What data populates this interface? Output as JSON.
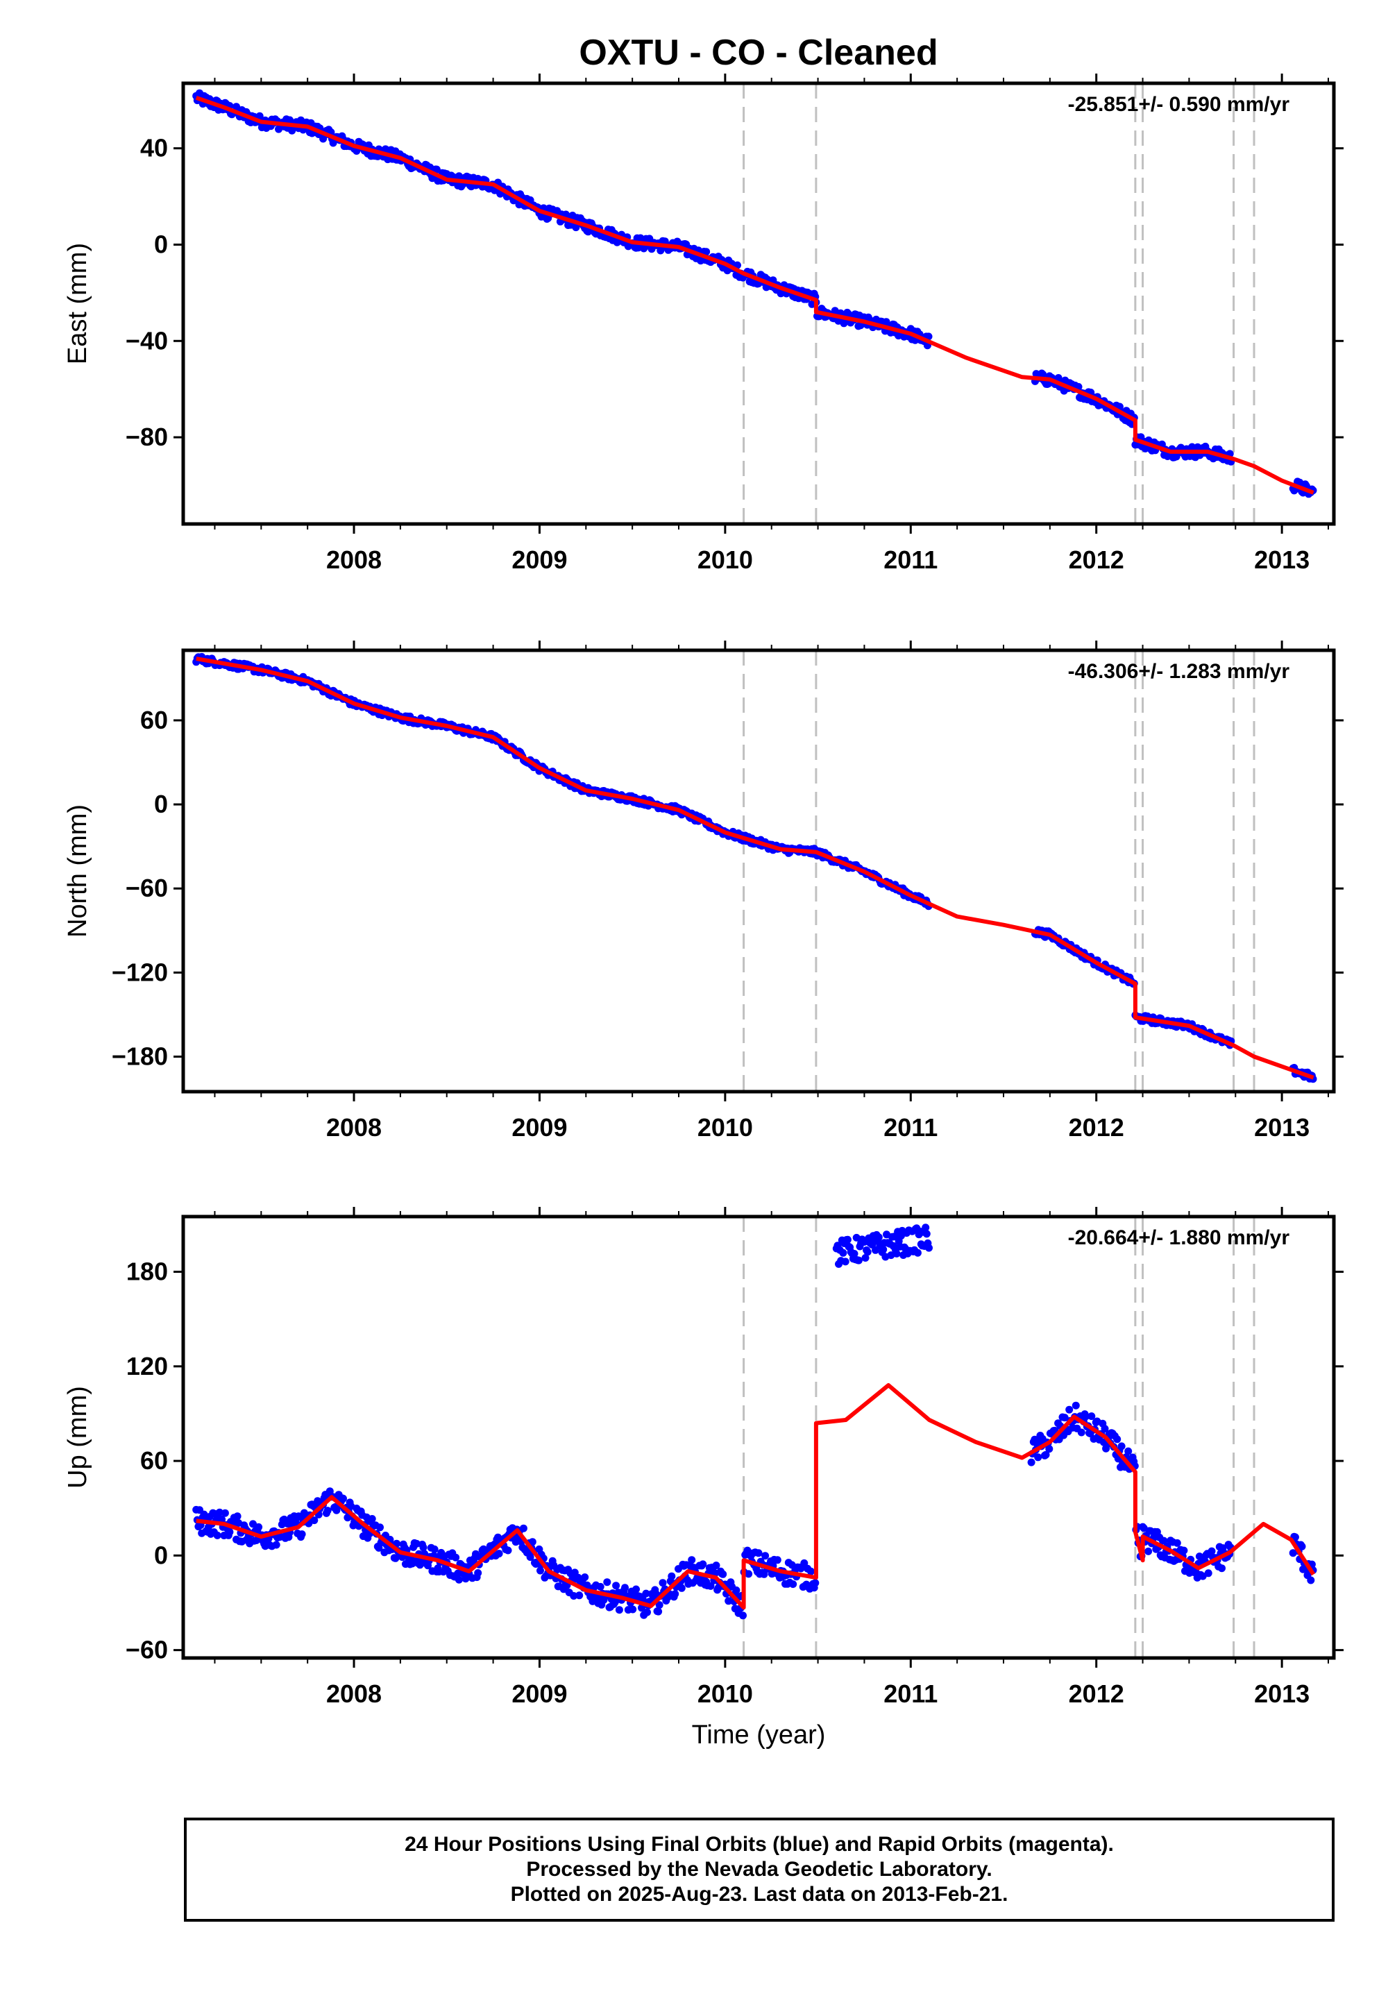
{
  "title": "OXTU  - CO - Cleaned",
  "xlabel": "Time (year)",
  "x_ticks": [
    "2008",
    "2009",
    "2010",
    "2011",
    "2012",
    "2013"
  ],
  "colors": {
    "data": "#0000ff",
    "model": "#ff0000",
    "event_lines": "#c0c0c0"
  },
  "footer": {
    "line1": "24 Hour Positions Using Final Orbits (blue) and Rapid Orbits (magenta).",
    "line2": "Processed by the Nevada Geodetic Laboratory.",
    "line3": "Plotted on 2025-Aug-23. Last data on 2013-Feb-21."
  },
  "chart_data": [
    {
      "type": "scatter",
      "component": "East",
      "ylabel": "East (mm)",
      "rate_label": "-25.851+/- 0.590 mm/yr",
      "xlim": [
        2007.08,
        2013.28
      ],
      "ylim": [
        -116,
        67
      ],
      "y_ticks": [
        40,
        0,
        -40,
        -80
      ],
      "event_lines": [
        2010.1,
        2010.49,
        2012.21,
        2012.25,
        2012.74,
        2012.85
      ],
      "data_spans": [
        [
          2007.15,
          2010.49
        ],
        [
          2010.49,
          2011.1
        ],
        [
          2011.67,
          2012.73
        ],
        [
          2013.06,
          2013.17
        ]
      ],
      "model": [
        [
          2007.15,
          61
        ],
        [
          2007.3,
          57
        ],
        [
          2007.5,
          51
        ],
        [
          2007.75,
          49
        ],
        [
          2008.0,
          41
        ],
        [
          2008.25,
          36
        ],
        [
          2008.5,
          27
        ],
        [
          2008.75,
          25
        ],
        [
          2009.0,
          14
        ],
        [
          2009.25,
          8
        ],
        [
          2009.5,
          1
        ],
        [
          2009.75,
          -1
        ],
        [
          2010.0,
          -8
        ],
        [
          2010.1,
          -12
        ],
        [
          2010.3,
          -18
        ],
        [
          2010.49,
          -23
        ],
        [
          2010.49,
          -28
        ],
        [
          2010.75,
          -32
        ],
        [
          2011.0,
          -37
        ],
        [
          2011.3,
          -47
        ],
        [
          2011.6,
          -55
        ],
        [
          2011.75,
          -56
        ],
        [
          2012.0,
          -64
        ],
        [
          2012.21,
          -73
        ],
        [
          2012.21,
          -81
        ],
        [
          2012.4,
          -86
        ],
        [
          2012.6,
          -86
        ],
        [
          2012.74,
          -89
        ],
        [
          2012.85,
          -92
        ],
        [
          2013.0,
          -98
        ],
        [
          2013.17,
          -103
        ]
      ]
    },
    {
      "type": "scatter",
      "component": "North",
      "ylabel": "North (mm)",
      "rate_label": "-46.306+/- 1.283 mm/yr",
      "xlim": [
        2007.08,
        2013.28
      ],
      "ylim": [
        -205,
        110
      ],
      "y_ticks": [
        60,
        0,
        -60,
        -120,
        -180
      ],
      "event_lines": [
        2010.1,
        2010.49,
        2012.21,
        2012.25,
        2012.74,
        2012.85
      ],
      "data_spans": [
        [
          2007.15,
          2010.49
        ],
        [
          2010.49,
          2011.1
        ],
        [
          2011.67,
          2012.73
        ],
        [
          2013.06,
          2013.17
        ]
      ],
      "model": [
        [
          2007.15,
          104
        ],
        [
          2007.5,
          96
        ],
        [
          2007.75,
          88
        ],
        [
          2008.0,
          72
        ],
        [
          2008.25,
          62
        ],
        [
          2008.5,
          56
        ],
        [
          2008.75,
          48
        ],
        [
          2009.0,
          26
        ],
        [
          2009.25,
          10
        ],
        [
          2009.5,
          4
        ],
        [
          2009.75,
          -4
        ],
        [
          2010.0,
          -20
        ],
        [
          2010.1,
          -24
        ],
        [
          2010.3,
          -32
        ],
        [
          2010.49,
          -34
        ],
        [
          2010.75,
          -48
        ],
        [
          2011.0,
          -65
        ],
        [
          2011.25,
          -80
        ],
        [
          2011.5,
          -86
        ],
        [
          2011.75,
          -93
        ],
        [
          2012.0,
          -113
        ],
        [
          2012.21,
          -128
        ],
        [
          2012.21,
          -152
        ],
        [
          2012.5,
          -158
        ],
        [
          2012.74,
          -172
        ],
        [
          2012.85,
          -180
        ],
        [
          2013.17,
          -195
        ]
      ]
    },
    {
      "type": "scatter",
      "component": "Up",
      "ylabel": "Up (mm)",
      "rate_label": "-20.664+/- 1.880 mm/yr",
      "xlim": [
        2007.08,
        2013.28
      ],
      "ylim": [
        -65,
        215
      ],
      "y_ticks": [
        180,
        120,
        60,
        0,
        -60
      ],
      "event_lines": [
        2010.1,
        2010.49,
        2012.21,
        2012.25,
        2012.74,
        2012.85
      ],
      "data_spans": [
        [
          2007.15,
          2010.49
        ],
        [
          2010.6,
          2011.1
        ],
        [
          2011.65,
          2012.73
        ],
        [
          2013.06,
          2013.17
        ]
      ],
      "model": [
        [
          2007.15,
          22
        ],
        [
          2007.3,
          20
        ],
        [
          2007.5,
          12
        ],
        [
          2007.7,
          18
        ],
        [
          2007.88,
          37
        ],
        [
          2008.05,
          20
        ],
        [
          2008.25,
          2
        ],
        [
          2008.45,
          -3
        ],
        [
          2008.62,
          -10
        ],
        [
          2008.88,
          16
        ],
        [
          2009.05,
          -10
        ],
        [
          2009.25,
          -22
        ],
        [
          2009.45,
          -27
        ],
        [
          2009.6,
          -32
        ],
        [
          2009.8,
          -10
        ],
        [
          2009.95,
          -14
        ],
        [
          2010.1,
          -33
        ],
        [
          2010.1,
          -3
        ],
        [
          2010.3,
          -10
        ],
        [
          2010.49,
          -14
        ],
        [
          2010.49,
          84
        ],
        [
          2010.65,
          86
        ],
        [
          2010.88,
          108
        ],
        [
          2011.1,
          86
        ],
        [
          2011.35,
          72
        ],
        [
          2011.6,
          62
        ],
        [
          2011.75,
          72
        ],
        [
          2011.88,
          88
        ],
        [
          2012.05,
          75
        ],
        [
          2012.21,
          53
        ],
        [
          2012.21,
          15
        ],
        [
          2012.25,
          -3
        ],
        [
          2012.25,
          12
        ],
        [
          2012.4,
          3
        ],
        [
          2012.55,
          -8
        ],
        [
          2012.72,
          2
        ],
        [
          2012.9,
          20
        ],
        [
          2013.05,
          10
        ],
        [
          2013.17,
          -12
        ]
      ]
    }
  ]
}
